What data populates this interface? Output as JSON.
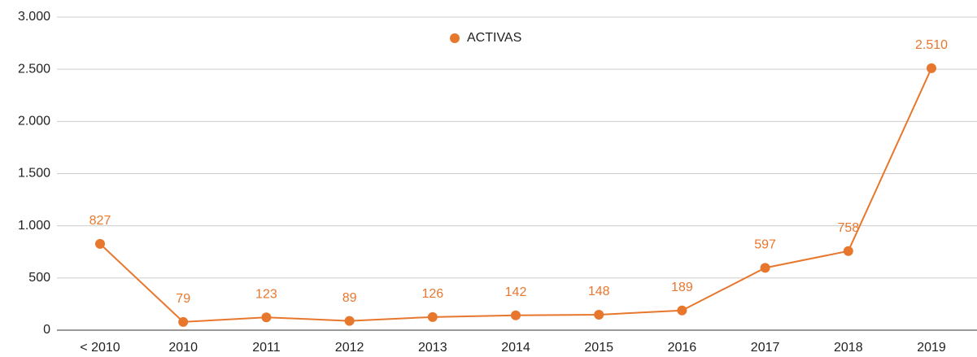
{
  "chart_data": {
    "type": "line",
    "categories": [
      "< 2010",
      "2010",
      "2011",
      "2012",
      "2013",
      "2014",
      "2015",
      "2016",
      "2017",
      "2018",
      "2019"
    ],
    "series": [
      {
        "name": "ACTIVAS",
        "color": "#e8772e",
        "values": [
          827,
          79,
          123,
          89,
          126,
          142,
          148,
          189,
          597,
          758,
          2510
        ],
        "value_labels": [
          "827",
          "79",
          "123",
          "89",
          "126",
          "142",
          "148",
          "189",
          "597",
          "758",
          "2.510"
        ]
      }
    ],
    "ylim": [
      0,
      3000
    ],
    "yticks": [
      0,
      500,
      {
        "value": 1000,
        "label": "1.000"
      },
      {
        "value": 1500,
        "label": "1.500"
      },
      {
        "value": 2000,
        "label": "2.000"
      },
      {
        "value": 2500,
        "label": "2.500"
      },
      {
        "value": 3000,
        "label": "3.000"
      }
    ],
    "grid": true,
    "legend": "top"
  }
}
